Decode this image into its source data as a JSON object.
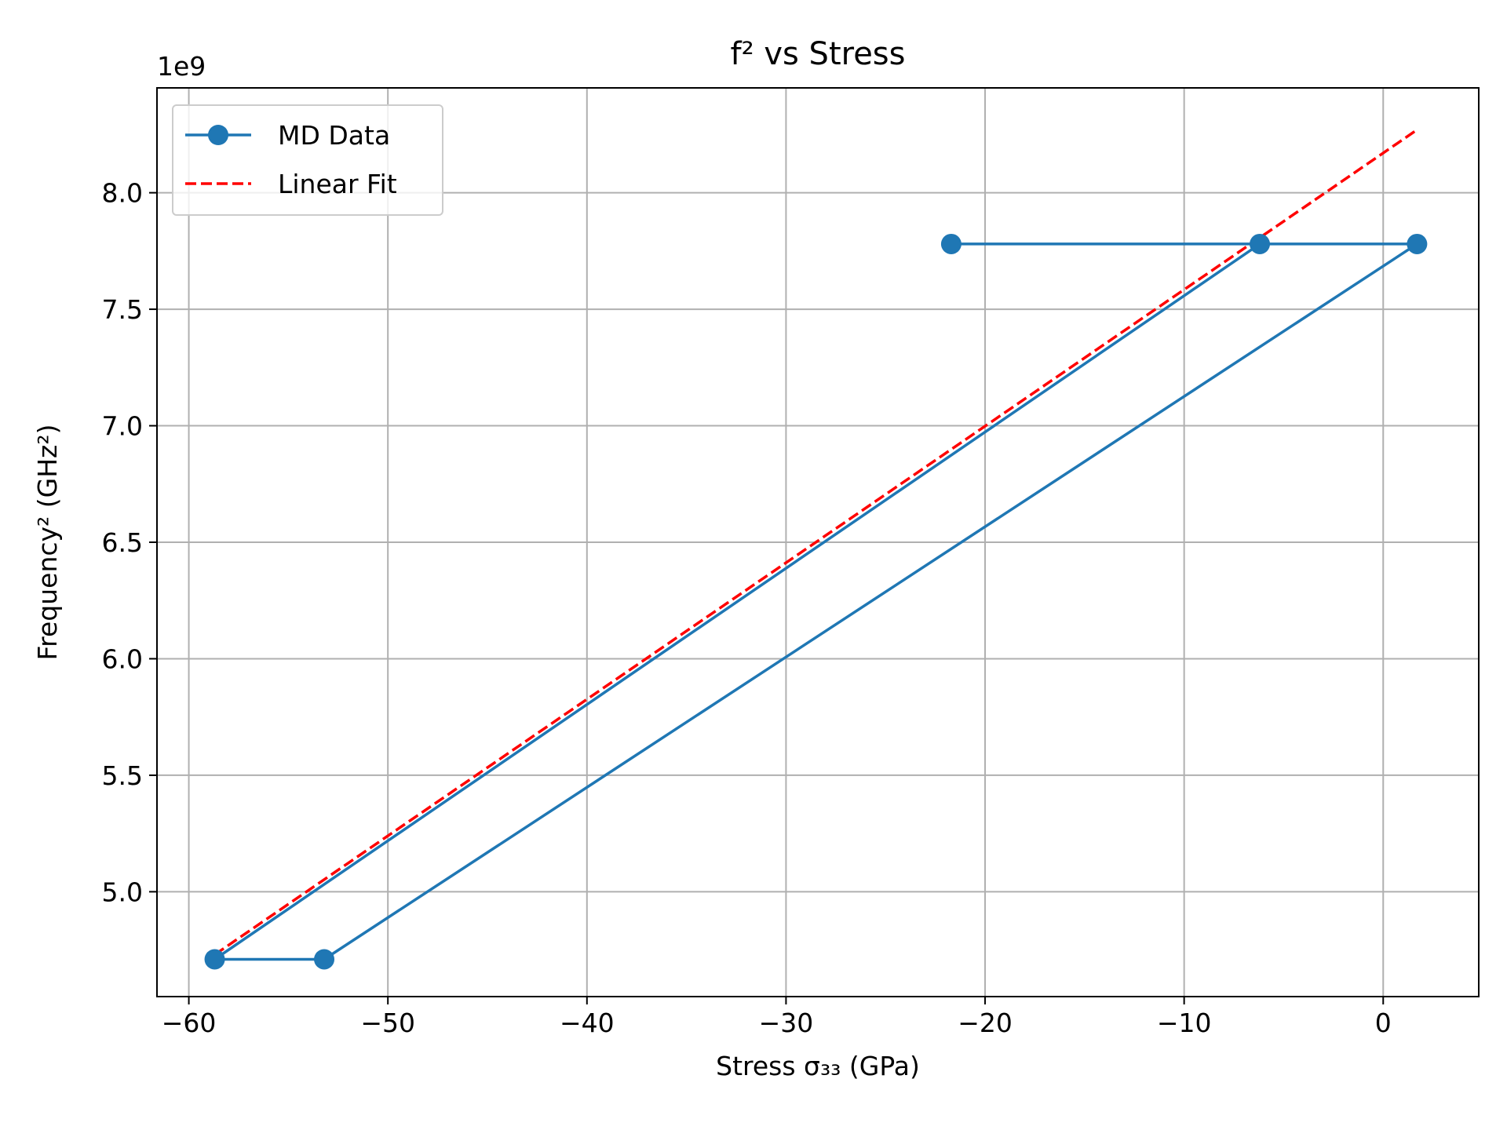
{
  "chart_data": {
    "type": "line",
    "title": "f² vs Stress",
    "xlabel": "Stress σ₃₃ (GPa)",
    "ylabel": "Frequency² (GHz²)",
    "y_offset_label": "1e9",
    "xlim": [
      -61.6,
      4.8
    ],
    "ylim": [
      4.55,
      8.45
    ],
    "x_ticks": [
      -60,
      -50,
      -40,
      -30,
      -20,
      -10,
      0
    ],
    "x_tick_labels": [
      "−60",
      "−50",
      "−40",
      "−30",
      "−20",
      "−10",
      "0"
    ],
    "y_ticks": [
      5.0,
      5.5,
      6.0,
      6.5,
      7.0,
      7.5,
      8.0
    ],
    "y_tick_labels": [
      "5.0",
      "5.5",
      "6.0",
      "6.5",
      "7.0",
      "7.5",
      "8.0"
    ],
    "grid": true,
    "legend_position": "top-left",
    "series": [
      {
        "name": "MD Data",
        "style": "line-with-markers",
        "color": "#1f77b4",
        "points": [
          {
            "x": -21.7,
            "y": 7.78
          },
          {
            "x": 1.7,
            "y": 7.78
          },
          {
            "x": -53.2,
            "y": 4.71
          },
          {
            "x": -58.7,
            "y": 4.71
          },
          {
            "x": -6.2,
            "y": 7.78
          }
        ]
      },
      {
        "name": "Linear Fit",
        "style": "dashed-line",
        "color": "#ff0000",
        "points": [
          {
            "x": -58.7,
            "y": 4.73
          },
          {
            "x": 1.7,
            "y": 8.27
          }
        ]
      }
    ]
  }
}
